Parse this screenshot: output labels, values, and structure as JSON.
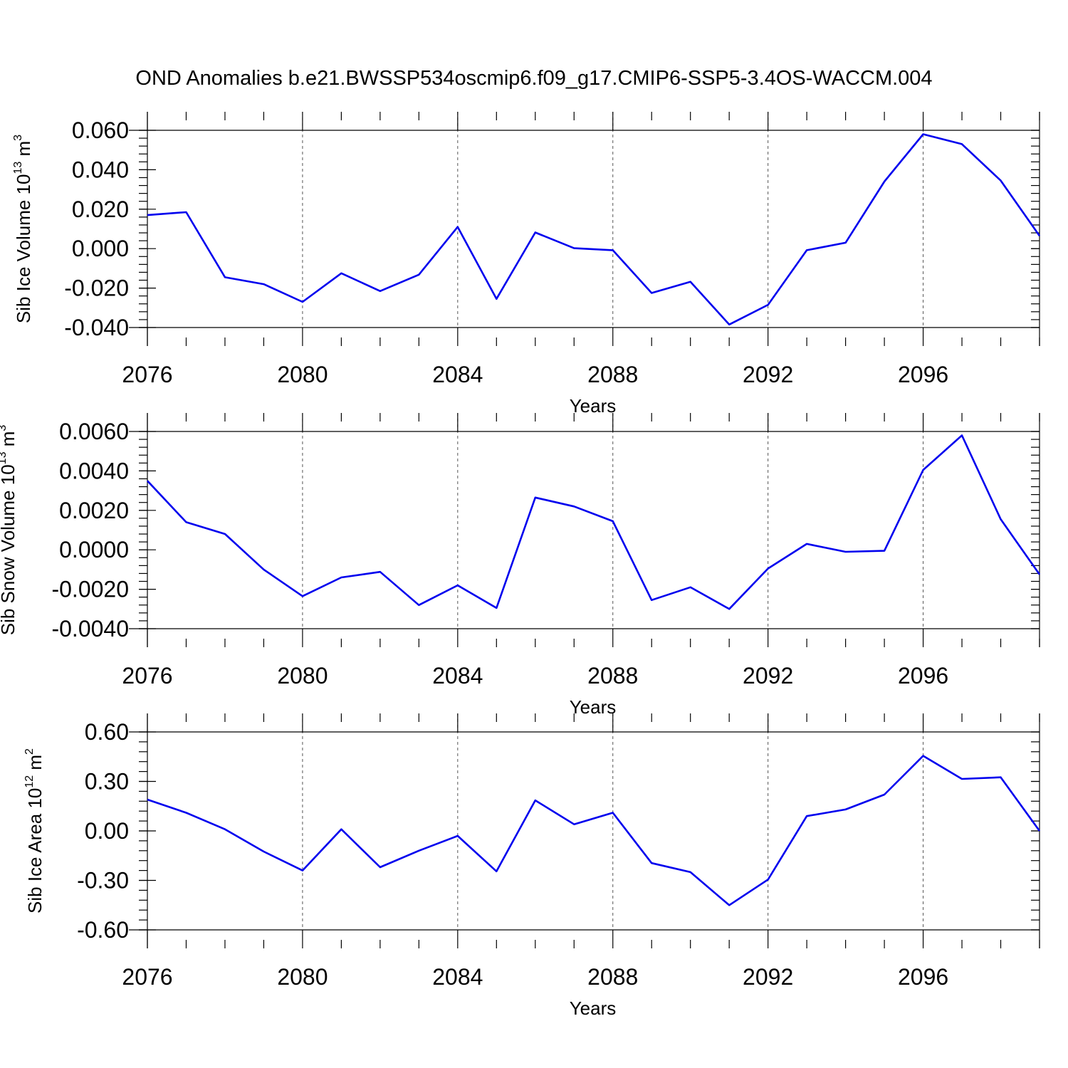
{
  "title": "OND Anomalies b.e21.BWSSP534oscmip6.f09_g17.CMIP6-SSP5-3.4OS-WACCM.004",
  "colors": {
    "series": "#0000ee",
    "axis": "#000000"
  },
  "chart_data": [
    {
      "type": "line",
      "ylabel_main": "Sib Ice Volume 10",
      "ylabel_exp": "13",
      "ylabel_unit": "m",
      "ylabel_unit_exp": "3",
      "xlabel": "Years",
      "xlim": [
        2076,
        2099
      ],
      "ylim": [
        -0.04,
        0.06
      ],
      "xticks": [
        2076,
        2080,
        2084,
        2088,
        2092,
        2096
      ],
      "xtick_labels": [
        "2076",
        "2080",
        "2084",
        "2088",
        "2092",
        "2096"
      ],
      "yticks": [
        -0.04,
        -0.02,
        0.0,
        0.02,
        0.04,
        0.06
      ],
      "ytick_labels": [
        "-0.040",
        "-0.020",
        "0.000",
        "0.020",
        "0.040",
        "0.060"
      ],
      "x": [
        2076,
        2077,
        2078,
        2079,
        2080,
        2081,
        2082,
        2083,
        2084,
        2085,
        2086,
        2087,
        2088,
        2089,
        2090,
        2091,
        2092,
        2093,
        2094,
        2095,
        2096,
        2097,
        2098,
        2099
      ],
      "values": [
        0.017,
        0.0185,
        -0.0145,
        -0.018,
        -0.027,
        -0.0125,
        -0.0215,
        -0.0132,
        0.011,
        -0.0255,
        0.0082,
        0.0002,
        -0.0008,
        -0.0225,
        -0.0168,
        -0.0385,
        -0.0285,
        -0.0008,
        0.003,
        0.034,
        0.058,
        0.053,
        0.0345,
        0.0065
      ]
    },
    {
      "type": "line",
      "ylabel_main": "Sib Snow Volume 10",
      "ylabel_exp": "13",
      "ylabel_unit": "m",
      "ylabel_unit_exp": "3",
      "xlabel": "Years",
      "xlim": [
        2076,
        2099
      ],
      "ylim": [
        -0.004,
        0.006
      ],
      "xticks": [
        2076,
        2080,
        2084,
        2088,
        2092,
        2096
      ],
      "xtick_labels": [
        "2076",
        "2080",
        "2084",
        "2088",
        "2092",
        "2096"
      ],
      "yticks": [
        -0.004,
        -0.002,
        0.0,
        0.002,
        0.004,
        0.006
      ],
      "ytick_labels": [
        "-0.0040",
        "-0.0020",
        "0.0000",
        "0.0020",
        "0.0040",
        "0.0060"
      ],
      "x": [
        2076,
        2077,
        2078,
        2079,
        2080,
        2081,
        2082,
        2083,
        2084,
        2085,
        2086,
        2087,
        2088,
        2089,
        2090,
        2091,
        2092,
        2093,
        2094,
        2095,
        2096,
        2097,
        2098,
        2099
      ],
      "values": [
        0.0035,
        0.0014,
        0.0008,
        -0.001,
        -0.00235,
        -0.0014,
        -0.00112,
        -0.0028,
        -0.0018,
        -0.00295,
        0.00265,
        0.0022,
        0.00145,
        -0.00255,
        -0.0019,
        -0.003,
        -0.00095,
        0.0003,
        -0.0001,
        -5e-05,
        0.00405,
        0.0058,
        0.00155,
        -0.00125
      ]
    },
    {
      "type": "line",
      "ylabel_main": "Sib Ice Area 10",
      "ylabel_exp": "12",
      "ylabel_unit": "m",
      "ylabel_unit_exp": "2",
      "xlabel": "Years",
      "xlim": [
        2076,
        2099
      ],
      "ylim": [
        -0.6,
        0.6
      ],
      "xticks": [
        2076,
        2080,
        2084,
        2088,
        2092,
        2096
      ],
      "xtick_labels": [
        "2076",
        "2080",
        "2084",
        "2088",
        "2092",
        "2096"
      ],
      "yticks": [
        -0.6,
        -0.3,
        0.0,
        0.3,
        0.6
      ],
      "ytick_labels": [
        "-0.60",
        "-0.30",
        "0.00",
        "0.30",
        "0.60"
      ],
      "x": [
        2076,
        2077,
        2078,
        2079,
        2080,
        2081,
        2082,
        2083,
        2084,
        2085,
        2086,
        2087,
        2088,
        2089,
        2090,
        2091,
        2092,
        2093,
        2094,
        2095,
        2096,
        2097,
        2098,
        2099
      ],
      "values": [
        0.19,
        0.11,
        0.01,
        -0.125,
        -0.24,
        0.01,
        -0.22,
        -0.12,
        -0.03,
        -0.245,
        0.185,
        0.04,
        0.11,
        -0.195,
        -0.25,
        -0.45,
        -0.295,
        0.09,
        0.13,
        0.22,
        0.455,
        0.315,
        0.325,
        0.0
      ]
    }
  ]
}
